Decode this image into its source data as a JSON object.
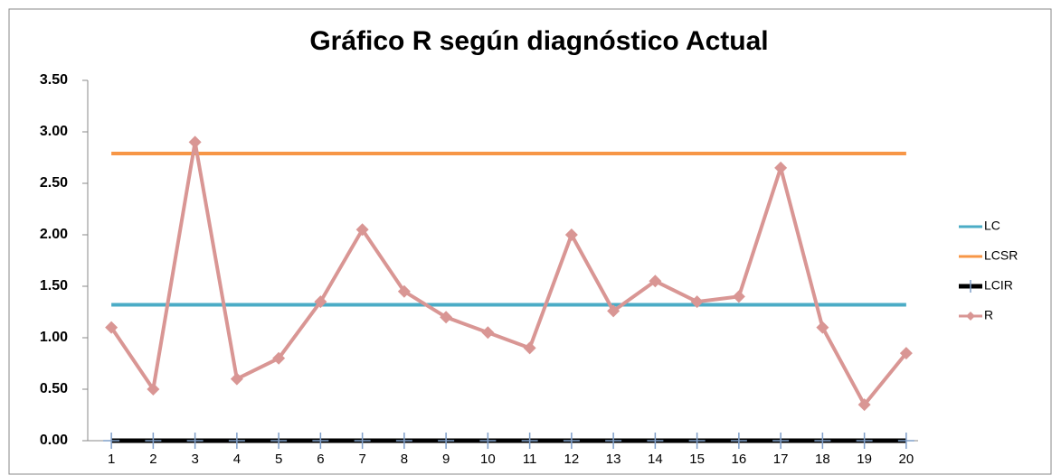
{
  "chart_data": {
    "type": "line",
    "title": "Gráfico R según diagnóstico Actual",
    "categories": [
      "1",
      "2",
      "3",
      "4",
      "5",
      "6",
      "7",
      "8",
      "9",
      "10",
      "11",
      "12",
      "13",
      "14",
      "15",
      "16",
      "17",
      "18",
      "19",
      "20"
    ],
    "series": [
      {
        "name": "LC",
        "color": "#4bacc6",
        "marker": "none",
        "values": [
          1.32,
          1.32,
          1.32,
          1.32,
          1.32,
          1.32,
          1.32,
          1.32,
          1.32,
          1.32,
          1.32,
          1.32,
          1.32,
          1.32,
          1.32,
          1.32,
          1.32,
          1.32,
          1.32,
          1.32
        ]
      },
      {
        "name": "LCSR",
        "color": "#f79646",
        "marker": "none",
        "values": [
          2.79,
          2.79,
          2.79,
          2.79,
          2.79,
          2.79,
          2.79,
          2.79,
          2.79,
          2.79,
          2.79,
          2.79,
          2.79,
          2.79,
          2.79,
          2.79,
          2.79,
          2.79,
          2.79,
          2.79
        ]
      },
      {
        "name": "LCIR",
        "color": "#000000",
        "marker": "plus",
        "values": [
          0,
          0,
          0,
          0,
          0,
          0,
          0,
          0,
          0,
          0,
          0,
          0,
          0,
          0,
          0,
          0,
          0,
          0,
          0,
          0
        ]
      },
      {
        "name": "R",
        "color": "#d99694",
        "marker": "diamond",
        "values": [
          1.1,
          0.5,
          2.9,
          0.6,
          0.8,
          1.35,
          2.05,
          1.45,
          1.2,
          1.05,
          0.9,
          2.0,
          1.26,
          1.55,
          1.35,
          1.4,
          2.65,
          1.1,
          0.35,
          0.85
        ]
      }
    ],
    "ylim": [
      0,
      3.5
    ],
    "yticks": [
      {
        "value": 0,
        "label": "0.00"
      },
      {
        "value": 0.5,
        "label": "0.50"
      },
      {
        "value": 1,
        "label": "1.00"
      },
      {
        "value": 1.5,
        "label": "1.50"
      },
      {
        "value": 2,
        "label": "2.00"
      },
      {
        "value": 2.5,
        "label": "2.50"
      },
      {
        "value": 3,
        "label": "3.00"
      },
      {
        "value": 3.5,
        "label": "3.50"
      }
    ],
    "grid": false,
    "legend": "right"
  }
}
